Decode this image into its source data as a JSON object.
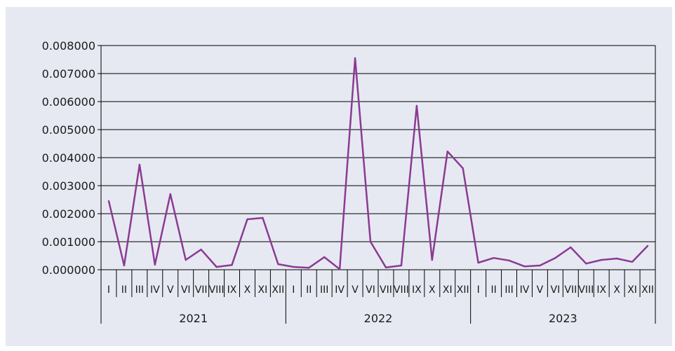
{
  "colors": {
    "panel": "#e6e9f1",
    "series": "#8b3a94",
    "grid": "#000000"
  },
  "chart_data": {
    "type": "line",
    "title": "",
    "xlabel": "",
    "ylabel": "",
    "ylim": [
      0,
      0.008
    ],
    "yticks": [
      "0.000000",
      "0.001000",
      "0.002000",
      "0.003000",
      "0.004000",
      "0.005000",
      "0.006000",
      "0.007000",
      "0.008000"
    ],
    "grid": true,
    "legend": "none",
    "years": [
      "2021",
      "2022",
      "2023"
    ],
    "months": [
      "I",
      "II",
      "III",
      "IV",
      "V",
      "VI",
      "VII",
      "VIII",
      "IX",
      "X",
      "XI",
      "XII"
    ],
    "series": [
      {
        "values": [
          0.00245,
          0.00015,
          0.00375,
          0.00018,
          0.0027,
          0.00035,
          0.00072,
          0.0001,
          0.00017,
          0.0018,
          0.00185,
          0.0002,
          0.0001,
          7e-05,
          0.00045,
          2e-05,
          0.00755,
          0.001,
          8e-05,
          0.00015,
          0.00585,
          0.00035,
          0.00422,
          0.00362,
          0.00025,
          0.00042,
          0.00033,
          0.00012,
          0.00015,
          0.00042,
          0.0008,
          0.00022,
          0.00035,
          0.0004,
          0.00028,
          0.00085
        ]
      }
    ]
  }
}
